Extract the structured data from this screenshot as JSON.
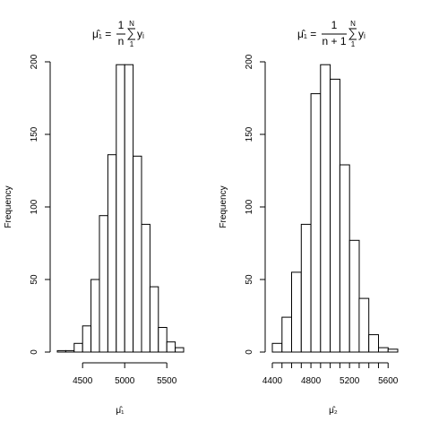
{
  "chart_data": [
    {
      "type": "bar",
      "subtype": "histogram",
      "title_formula": {
        "lhs": "μ̂₁ =",
        "numerator": "1",
        "denominator": "n",
        "sum_upper": "N",
        "sum_lower": "1",
        "summand": "yᵢ"
      },
      "xlabel": "μ̂₁",
      "ylabel": "Frequency",
      "bin_edges": [
        4200,
        4300,
        4400,
        4500,
        4600,
        4700,
        4800,
        4900,
        5000,
        5100,
        5200,
        5300,
        5400,
        5500,
        5600,
        5700
      ],
      "values": [
        1,
        1,
        6,
        18,
        50,
        94,
        136,
        198,
        198,
        135,
        88,
        45,
        17,
        7,
        3
      ],
      "x_ticks": [
        4500,
        5000,
        5500
      ],
      "x_tick_labels": [
        "4500",
        "5000",
        "5500"
      ],
      "y_ticks": [
        0,
        50,
        100,
        150,
        200
      ],
      "y_tick_labels": [
        "0",
        "50",
        "100",
        "150",
        "200"
      ],
      "xlim": [
        4200,
        5700
      ],
      "ylim": [
        0,
        200
      ],
      "grid": false,
      "legend": "none"
    },
    {
      "type": "bar",
      "subtype": "histogram",
      "title_formula": {
        "lhs": "μ̂₁ =",
        "numerator": "1",
        "denominator": "n + 1",
        "sum_upper": "N",
        "sum_lower": "1",
        "summand": "yᵢ"
      },
      "xlabel": "μ̂₂",
      "ylabel": "Frequency",
      "bin_edges": [
        4400,
        4500,
        4600,
        4700,
        4800,
        4900,
        5000,
        5100,
        5200,
        5300,
        5400,
        5500,
        5600,
        5700
      ],
      "values": [
        6,
        24,
        55,
        88,
        178,
        198,
        188,
        129,
        77,
        37,
        12,
        3,
        2
      ],
      "x_ticks": [
        4400,
        4500,
        4600,
        4700,
        4800,
        4900,
        5000,
        5100,
        5200,
        5300,
        5400,
        5500,
        5600
      ],
      "x_tick_labels": [
        "4400",
        "",
        "",
        "",
        "4800",
        "",
        "",
        "",
        "5200",
        "",
        "",
        "",
        "5600"
      ],
      "y_ticks": [
        0,
        50,
        100,
        150,
        200
      ],
      "y_tick_labels": [
        "0",
        "50",
        "100",
        "150",
        "200"
      ],
      "xlim": [
        4400,
        5700
      ],
      "ylim": [
        0,
        200
      ],
      "grid": false,
      "legend": "none"
    }
  ]
}
